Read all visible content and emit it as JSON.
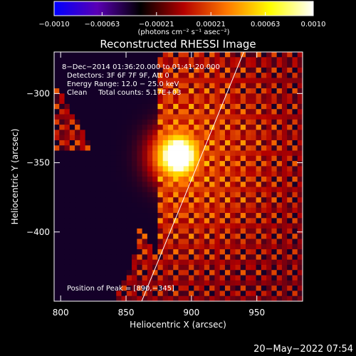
{
  "chart_data": {
    "type": "heatmap",
    "title": "Reconstructed RHESSI Image",
    "xlabel": "Heliocentric X (arcsec)",
    "ylabel": "Heliocentric Y (arcsec)",
    "xlim": [
      795,
      985
    ],
    "ylim": [
      -450,
      -270
    ],
    "x_ticks": [
      800,
      850,
      900,
      950
    ],
    "y_ticks": [
      -300,
      -350,
      -400
    ],
    "x_tick_labels": [
      "800",
      "850",
      "900",
      "950"
    ],
    "y_tick_labels": [
      "−300",
      "−350",
      "−400"
    ],
    "colorbar": {
      "range": [
        -0.001,
        0.001
      ],
      "ticks": [
        -0.001,
        -0.00063,
        -0.00021,
        0.00021,
        0.00063,
        0.001
      ],
      "tick_labels": [
        "−0.0010",
        "−0.00063",
        "−0.00021",
        "0.00021",
        "0.00063",
        "0.0010"
      ],
      "units": "(photons cm⁻² s⁻¹ asec⁻²)",
      "colors": [
        "#0000ff",
        "#5a00b4",
        "#000000",
        "#b40000",
        "#ff7800",
        "#ffff00",
        "#ffffff"
      ]
    },
    "peak": {
      "x": 890,
      "y": -345,
      "radius_arcsec": 14
    },
    "limb_line": {
      "x1": 862,
      "y1": -450,
      "x2": 940,
      "y2": -270
    },
    "annotations": [
      "8−Dec−2014 01:36:20.000 to 01:41:20.000",
      "Detectors: 3F 6F 7F 9F, Att 0",
      "Energy Range: 12.0 − 25.0 keV",
      "Clean     Total counts: 5.17E+03",
      "Position of Peak = [890,−345]"
    ]
  },
  "footer": {
    "timestamp": "20−May−2022 07:54"
  }
}
